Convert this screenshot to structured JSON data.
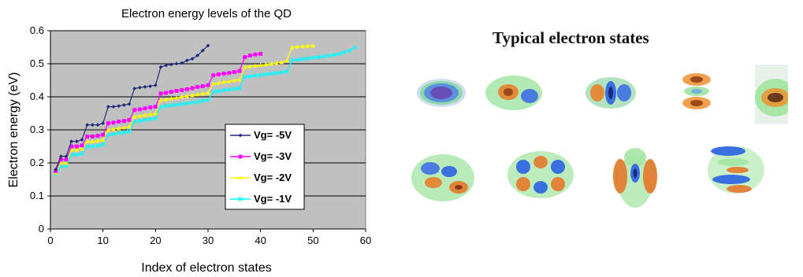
{
  "chart_data": {
    "type": "line",
    "title": "Electron energy levels of the QD",
    "xlabel": "Index of electron states",
    "ylabel": "Electron energy (eV)",
    "xlim": [
      0,
      60
    ],
    "ylim": [
      0,
      0.6
    ],
    "xticks": [
      "0",
      "10",
      "20",
      "30",
      "40",
      "50",
      "60"
    ],
    "yticks": [
      "0",
      "0.1",
      "0.2",
      "0.3",
      "0.4",
      "0.5",
      "0.6"
    ],
    "background": "#c0c0c0",
    "grid": "horizontal",
    "legend_position": "center-right",
    "series": [
      {
        "name": "Vg= -5V",
        "color": "#1f2a7a",
        "marker": "diamond",
        "x_start": 1,
        "values": [
          0.18,
          0.22,
          0.22,
          0.265,
          0.265,
          0.27,
          0.315,
          0.315,
          0.315,
          0.32,
          0.37,
          0.37,
          0.372,
          0.375,
          0.378,
          0.425,
          0.428,
          0.43,
          0.432,
          0.435,
          0.49,
          0.495,
          0.498,
          0.5,
          0.502,
          0.51,
          0.515,
          0.525,
          0.54,
          0.555
        ]
      },
      {
        "name": "Vg= -3V",
        "color": "#ff00ff",
        "marker": "square",
        "x_start": 1,
        "values": [
          0.175,
          0.21,
          0.21,
          0.25,
          0.25,
          0.253,
          0.28,
          0.28,
          0.282,
          0.285,
          0.32,
          0.322,
          0.325,
          0.327,
          0.33,
          0.36,
          0.362,
          0.365,
          0.368,
          0.37,
          0.41,
          0.412,
          0.415,
          0.418,
          0.42,
          0.423,
          0.426,
          0.43,
          0.432,
          0.435,
          0.465,
          0.468,
          0.47,
          0.472,
          0.475,
          0.478,
          0.52,
          0.525,
          0.528,
          0.53
        ]
      },
      {
        "name": "Vg= -2V",
        "color": "#ffff00",
        "marker": "triangle",
        "x_start": 1,
        "values": [
          0.17,
          0.2,
          0.2,
          0.24,
          0.24,
          0.243,
          0.265,
          0.265,
          0.267,
          0.27,
          0.3,
          0.302,
          0.305,
          0.307,
          0.31,
          0.34,
          0.342,
          0.345,
          0.347,
          0.35,
          0.39,
          0.392,
          0.395,
          0.397,
          0.4,
          0.402,
          0.405,
          0.407,
          0.41,
          0.412,
          0.44,
          0.442,
          0.445,
          0.447,
          0.45,
          0.452,
          0.49,
          0.492,
          0.494,
          0.496,
          0.498,
          0.5,
          0.502,
          0.505,
          0.51,
          0.55,
          0.552,
          0.553,
          0.554,
          0.555
        ]
      },
      {
        "name": "Vg= -1V",
        "color": "#00ffff",
        "marker": "x",
        "x_start": 1,
        "values": [
          0.165,
          0.19,
          0.19,
          0.225,
          0.225,
          0.228,
          0.25,
          0.25,
          0.252,
          0.255,
          0.285,
          0.287,
          0.29,
          0.292,
          0.295,
          0.325,
          0.327,
          0.33,
          0.332,
          0.335,
          0.37,
          0.372,
          0.374,
          0.376,
          0.378,
          0.38,
          0.382,
          0.385,
          0.388,
          0.39,
          0.415,
          0.417,
          0.42,
          0.422,
          0.424,
          0.426,
          0.46,
          0.462,
          0.464,
          0.466,
          0.468,
          0.47,
          0.472,
          0.474,
          0.476,
          0.51,
          0.512,
          0.514,
          0.516,
          0.518,
          0.52,
          0.522,
          0.524,
          0.527,
          0.53,
          0.535,
          0.54,
          0.55
        ]
      }
    ]
  },
  "states_panel": {
    "title": "Typical electron states",
    "thumbnails": [
      {
        "name": "s-state",
        "colors": [
          "#8fd9a8",
          "#5b8fe0",
          "#6a4fb3"
        ]
      },
      {
        "name": "p-state-1",
        "colors": [
          "#a6e6a6",
          "#e08a3a",
          "#4a7be0"
        ]
      },
      {
        "name": "p-state-2",
        "colors": [
          "#9fdcb0",
          "#3a6fe0",
          "#e08a3a"
        ]
      },
      {
        "name": "d-state-1",
        "colors": [
          "#f0a050",
          "#6fb0e0",
          "#a6e6a6"
        ]
      },
      {
        "name": "d-state-2",
        "colors": [
          "#a6e6a6",
          "#e0a040",
          "#6a4fb3"
        ]
      },
      {
        "name": "f-state-1",
        "colors": [
          "#a6e6a6",
          "#3a6fe0",
          "#e0843a"
        ]
      },
      {
        "name": "f-state-2",
        "colors": [
          "#3a6fe0",
          "#e0843a",
          "#a6e6a6"
        ]
      },
      {
        "name": "g-state-1",
        "colors": [
          "#e0843a",
          "#3a6fe0",
          "#a6e6a6"
        ]
      },
      {
        "name": "g-state-2",
        "colors": [
          "#3a6fe0",
          "#a6e6a6",
          "#e0843a"
        ]
      }
    ]
  }
}
